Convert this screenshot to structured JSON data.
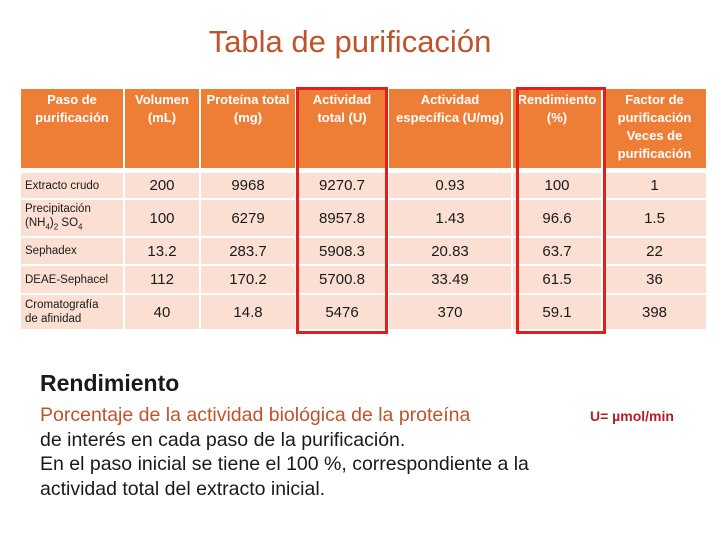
{
  "title": "Tabla de purificación",
  "table": {
    "headers": [
      "Paso de purificación",
      "Volumen (mL)",
      "Proteína total (mg)",
      "Actividad total (U)",
      "Actividad específica (U/mg)",
      "Rendimiento (%)",
      "Factor de purificación Veces de purificación"
    ],
    "rows": [
      {
        "step": "Extracto crudo",
        "volumen": "200",
        "proteina": "9968",
        "actividad": "9270.7",
        "especifica": "0.93",
        "rendimiento": "100",
        "factor": "1"
      },
      {
        "step_line1": "Precipitación",
        "step_line2_pre": "(NH",
        "step_sub1": "4",
        "step_mid": ")",
        "step_sub2": "2",
        "step_post": " SO",
        "step_sub3": "4",
        "volumen": "100",
        "proteina": "6279",
        "actividad": "8957.8",
        "especifica": "1.43",
        "rendimiento": "96.6",
        "factor": "1.5"
      },
      {
        "step": "Sephadex",
        "volumen": "13.2",
        "proteina": "283.7",
        "actividad": "5908.3",
        "especifica": "20.83",
        "rendimiento": "63.7",
        "factor": "22"
      },
      {
        "step": "DEAE-Sephacel",
        "volumen": "112",
        "proteina": "170.2",
        "actividad": "5700.8",
        "especifica": "33.49",
        "rendimiento": "61.5",
        "factor": "36"
      },
      {
        "step_line1": "Cromatografía",
        "step_line2": "de afinidad",
        "volumen": "40",
        "proteina": "14.8",
        "actividad": "5476",
        "especifica": "370",
        "rendimiento": "59.1",
        "factor": "398"
      }
    ]
  },
  "highlight_color": "#e0201c",
  "section": {
    "heading": "Rendimiento",
    "unit_note": "U= µmol/min",
    "lines": [
      "Porcentaje de la actividad biológica de la proteína",
      "de interés en cada paso de la purificación.",
      "En el paso inicial se tiene el 100 %, correspondiente a la",
      "actividad total del extracto inicial."
    ]
  }
}
